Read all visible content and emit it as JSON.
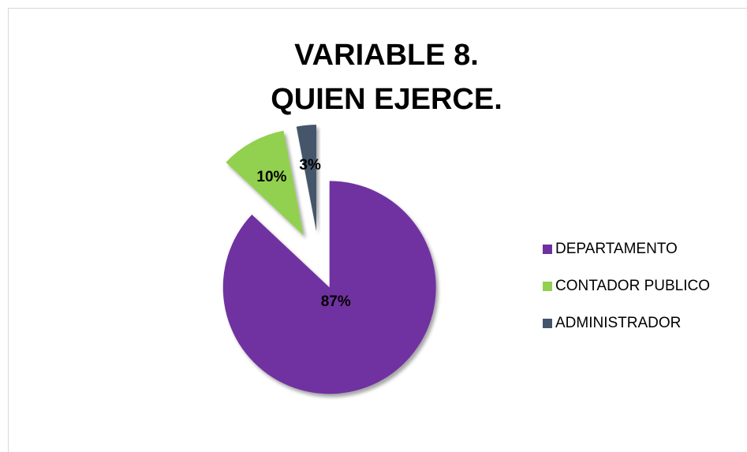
{
  "chart_data": {
    "type": "pie",
    "title": "VARIABLE 8.\nQUIEN EJERCE.",
    "categories": [
      "DEPARTAMENTO",
      "CONTADOR PUBLICO",
      "ADMINISTRADOR"
    ],
    "values": [
      87,
      10,
      3
    ],
    "value_labels": [
      "87%",
      "10%",
      "3%"
    ],
    "colors": [
      "#7030a0",
      "#92d050",
      "#44546a"
    ],
    "legend": "right"
  }
}
